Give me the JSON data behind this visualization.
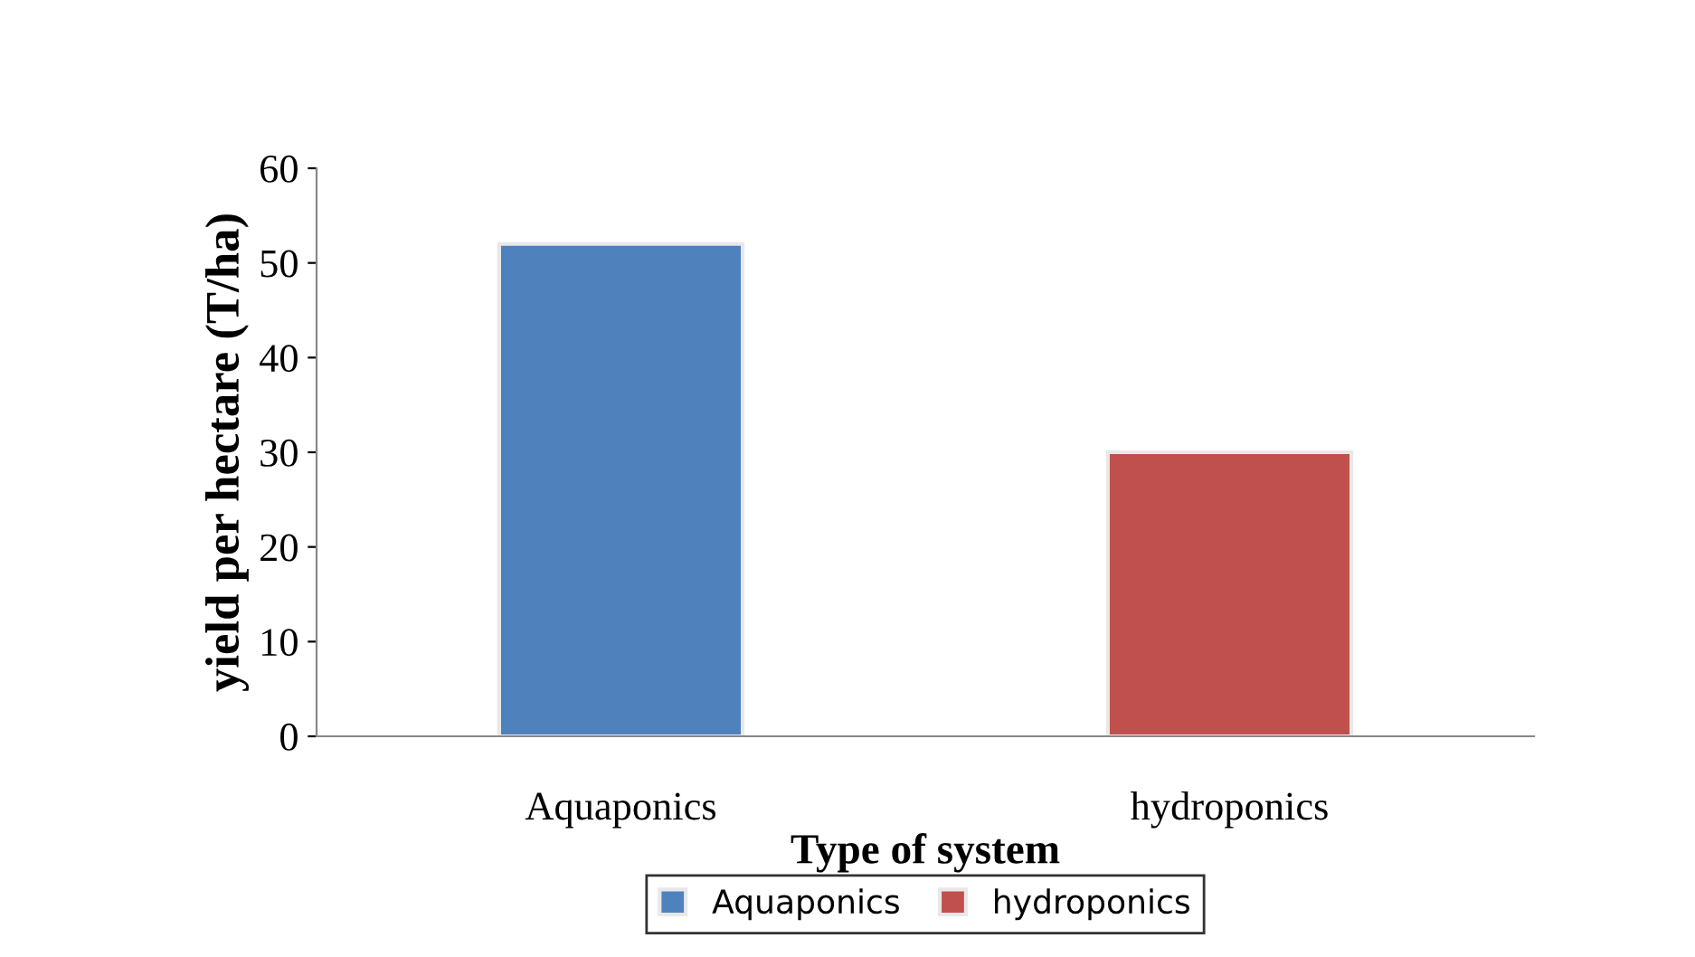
{
  "chart_data": {
    "type": "bar",
    "xlabel": "Type of system",
    "ylabel": "yield per hectare (T/ha)",
    "categories": [
      "Aquaponics",
      "hydroponics"
    ],
    "series": [
      {
        "name": "Aquaponics",
        "color": "#4f81bd",
        "values": [
          52,
          null
        ]
      },
      {
        "name": "hydroponics",
        "color": "#c0504d",
        "values": [
          null,
          30
        ]
      }
    ],
    "ylim": [
      0,
      60
    ],
    "yticks": [
      0,
      10,
      20,
      30,
      40,
      50,
      60
    ],
    "grid": false,
    "legend": "bottom"
  }
}
